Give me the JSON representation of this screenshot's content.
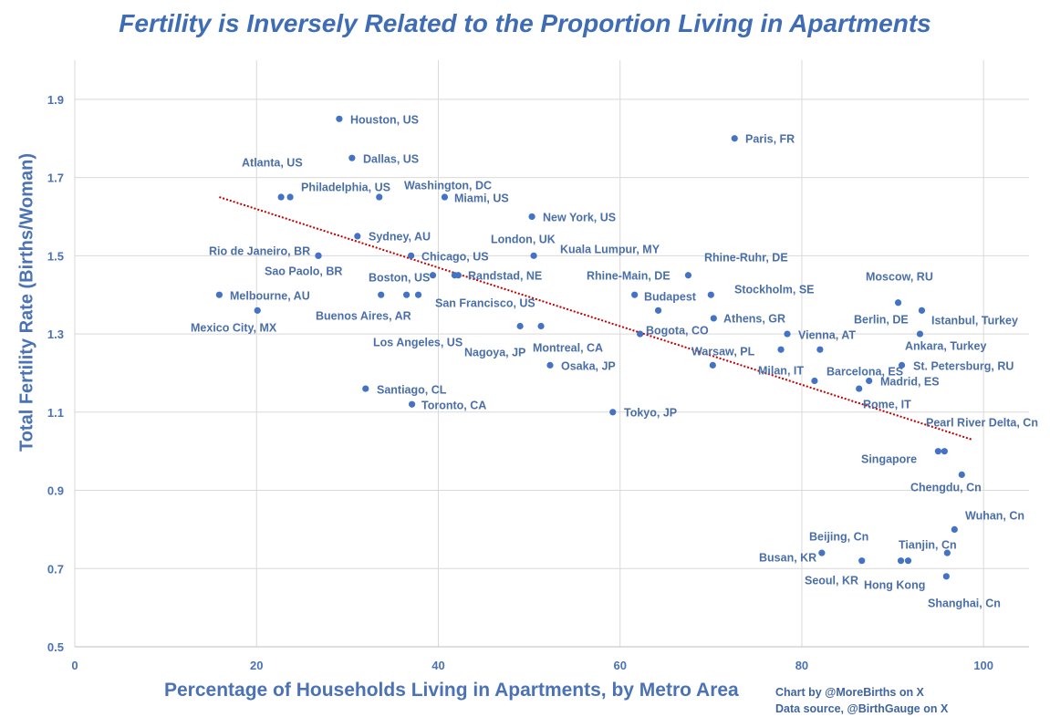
{
  "chart_data": {
    "type": "scatter",
    "title": "Fertility is Inversely Related to the Proportion Living in Apartments",
    "xlabel": "Percentage of Households Living in Apartments, by Metro Area",
    "ylabel": "Total Fertility Rate (Births/Woman)",
    "xlim": [
      0,
      105
    ],
    "ylim": [
      0.5,
      2.0
    ],
    "x_ticks": [
      "0",
      "20",
      "40",
      "60",
      "80",
      "100"
    ],
    "y_ticks": [
      "0.5",
      "0.7",
      "0.9",
      "1.1",
      "1.3",
      "1.5",
      "1.7",
      "1.9"
    ],
    "grid": true,
    "point_color": "#4472C4",
    "trendline": {
      "type": "linear",
      "color": "#C00000",
      "x": [
        15.9,
        98.7
      ],
      "y": [
        1.65,
        1.03
      ]
    },
    "points": [
      {
        "label": "Houston, US",
        "x": 29.1,
        "y": 1.85
      },
      {
        "label": "Dallas, US",
        "x": 30.5,
        "y": 1.75
      },
      {
        "label": "Paris, FR",
        "x": 72.6,
        "y": 1.8
      },
      {
        "label": "Atlanta, US",
        "x": 22.7,
        "y": 1.65
      },
      {
        "label": "Philadelphia, US",
        "x": 23.7,
        "y": 1.65
      },
      {
        "label": "Washington, DC",
        "x": 33.5,
        "y": 1.65
      },
      {
        "label": "Miami, US",
        "x": 40.7,
        "y": 1.65
      },
      {
        "label": "New York, US",
        "x": 50.3,
        "y": 1.6
      },
      {
        "label": "Sydney, AU",
        "x": 31.1,
        "y": 1.55
      },
      {
        "label": "Rio de Janeiro, BR",
        "x": 26.8,
        "y": 1.5
      },
      {
        "label": "Sao Paolo, BR",
        "x": 26.8,
        "y": 1.5
      },
      {
        "label": "Chicago, US",
        "x": 37.0,
        "y": 1.5
      },
      {
        "label": "London, UK",
        "x": 41.8,
        "y": 1.45
      },
      {
        "label": "Kuala Lumpur, MY",
        "x": 50.5,
        "y": 1.5
      },
      {
        "label": "Rhine-Ruhr, DE",
        "x": 67.5,
        "y": 1.45
      },
      {
        "label": "Rhine-Main, DE",
        "x": 61.6,
        "y": 1.4
      },
      {
        "label": "Budapest",
        "x": 64.2,
        "y": 1.36
      },
      {
        "label": "Stockholm, SE",
        "x": 70.0,
        "y": 1.4
      },
      {
        "label": "Melbourne, AU",
        "x": 15.9,
        "y": 1.4
      },
      {
        "label": "Mexico City, MX",
        "x": 20.1,
        "y": 1.36
      },
      {
        "label": "Buenos Aires, AR",
        "x": 33.7,
        "y": 1.4
      },
      {
        "label": "Boston, US",
        "x": 39.4,
        "y": 1.45
      },
      {
        "label": "Randstad, NE",
        "x": 42.2,
        "y": 1.45
      },
      {
        "label": "San Francisco, US",
        "x": 37.8,
        "y": 1.4
      },
      {
        "label": "Los Angeles, US",
        "x": 36.5,
        "y": 1.4
      },
      {
        "label": "Nagoya, JP",
        "x": 49.0,
        "y": 1.32
      },
      {
        "label": "Montreal, CA",
        "x": 51.3,
        "y": 1.32
      },
      {
        "label": "Osaka, JP",
        "x": 52.3,
        "y": 1.22
      },
      {
        "label": "Bogota, CO",
        "x": 62.2,
        "y": 1.3
      },
      {
        "label": "Athens, GR",
        "x": 70.3,
        "y": 1.34
      },
      {
        "label": "Moscow, RU",
        "x": 90.6,
        "y": 1.38
      },
      {
        "label": "Istanbul, Turkey",
        "x": 93.2,
        "y": 1.36
      },
      {
        "label": "Berlin, DE",
        "x": 82.0,
        "y": 1.26
      },
      {
        "label": "Vienna, AT",
        "x": 78.4,
        "y": 1.3
      },
      {
        "label": "Ankara, Turkey",
        "x": 93.0,
        "y": 1.3
      },
      {
        "label": "Milan, IT",
        "x": 77.7,
        "y": 1.26
      },
      {
        "label": "Warsaw, PL",
        "x": 70.2,
        "y": 1.22
      },
      {
        "label": "Barcelona, ES",
        "x": 81.4,
        "y": 1.18
      },
      {
        "label": "St. Petersburg, RU",
        "x": 91.0,
        "y": 1.22
      },
      {
        "label": "Madrid, ES",
        "x": 87.4,
        "y": 1.18
      },
      {
        "label": "Rome, IT",
        "x": 86.3,
        "y": 1.16
      },
      {
        "label": "Santiago, CL",
        "x": 32.0,
        "y": 1.16
      },
      {
        "label": "Toronto, CA",
        "x": 37.1,
        "y": 1.12
      },
      {
        "label": "Tokyo, JP",
        "x": 59.2,
        "y": 1.1
      },
      {
        "label": "Pearl River Delta, Cn",
        "x": 95.7,
        "y": 1.0
      },
      {
        "label": "Singapore",
        "x": 95.0,
        "y": 1.0
      },
      {
        "label": "Chengdu, Cn",
        "x": 97.6,
        "y": 0.94
      },
      {
        "label": "Wuhan, Cn",
        "x": 96.8,
        "y": 0.8
      },
      {
        "label": "Beijing, Cn",
        "x": 90.9,
        "y": 0.72
      },
      {
        "label": "Tianjin, Cn",
        "x": 96.0,
        "y": 0.74
      },
      {
        "label": "Busan, KR",
        "x": 82.2,
        "y": 0.74
      },
      {
        "label": "Seoul, KR",
        "x": 86.6,
        "y": 0.72
      },
      {
        "label": "Hong Kong",
        "x": 91.7,
        "y": 0.72
      },
      {
        "label": "Shanghai, Cn",
        "x": 95.9,
        "y": 0.68
      }
    ]
  },
  "credits": {
    "line1": "Chart by @MoreBirths on X",
    "line2": "Data source, @BirthGauge on X"
  }
}
